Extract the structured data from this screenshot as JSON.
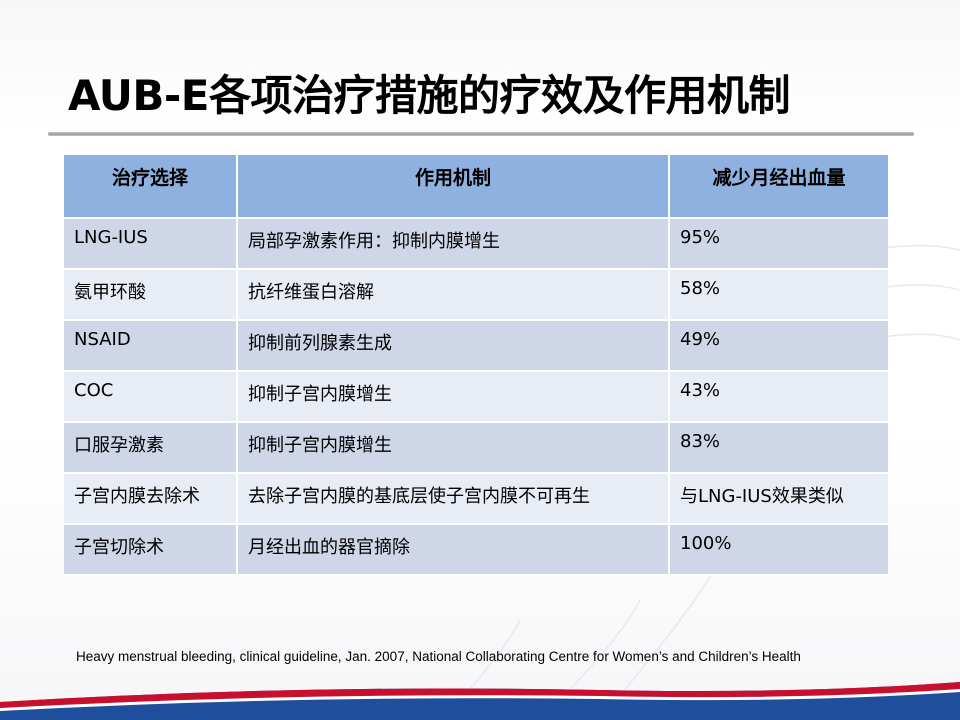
{
  "slide": {
    "title": "AUB-E各项治疗措施的疗效及作用机制",
    "citation": "Heavy menstrual bleeding, clinical guideline, Jan. 2007, National Collaborating Centre for Women’s and Children’s Health",
    "colors": {
      "header": "#8fb1df",
      "row_dark": "#cfd6e8",
      "row_light": "#e8ecf4",
      "footer_red": "#c8102e",
      "footer_blue": "#1f4e9c"
    }
  },
  "table": {
    "headers": [
      "治疗选择",
      "作用机制",
      "减少月经出血量"
    ],
    "rows": [
      [
        "LNG-IUS",
        "局部孕激素作用：抑制内膜增生",
        "95%"
      ],
      [
        "氨甲环酸",
        "抗纤维蛋白溶解",
        "58%"
      ],
      [
        "NSAID",
        "抑制前列腺素生成",
        "49%"
      ],
      [
        "COC",
        "抑制子宫内膜增生",
        "43%"
      ],
      [
        "口服孕激素",
        "抑制子宫内膜增生",
        "83%"
      ],
      [
        "子宫内膜去除术",
        "去除子宫内膜的基底层使子宫内膜不可再生",
        "与LNG-IUS效果类似"
      ],
      [
        "子宫切除术",
        "月经出血的器官摘除",
        "100%"
      ]
    ]
  }
}
